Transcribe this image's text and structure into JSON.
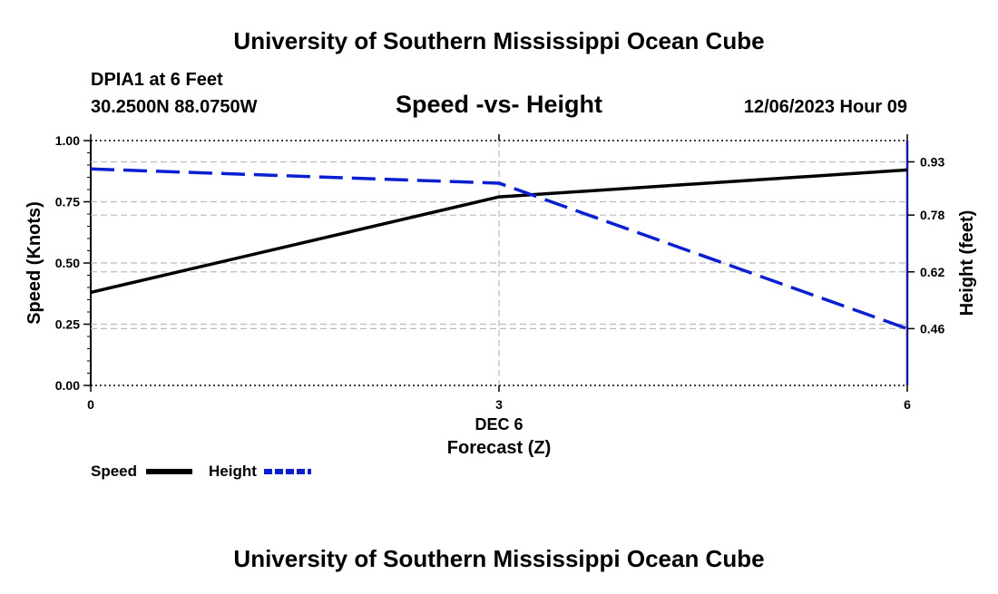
{
  "header": {
    "title": "University of Southern Mississippi Ocean Cube",
    "station": "DPIA1 at 6 Feet",
    "coords": "30.2500N  88.0750W",
    "chart_title": "Speed -vs- Height",
    "datetime": "12/06/2023 Hour 09"
  },
  "footer": {
    "title": "University of Southern Mississippi Ocean Cube"
  },
  "chart_data": {
    "type": "line",
    "title": "Speed -vs- Height",
    "xlabel": "Forecast (Z)",
    "xlabel_date": "DEC 6",
    "ylabel_left": "Speed (Knots)",
    "ylabel_right": "Height (feet)",
    "x": [
      0,
      3,
      6
    ],
    "x_ticks": [
      "0",
      "3",
      "6"
    ],
    "xlim": [
      0,
      6
    ],
    "ylim_left": [
      0,
      1
    ],
    "y_ticks_left": [
      "0.00",
      "0.25",
      "0.50",
      "0.75",
      "1.00"
    ],
    "y_tick_values_left": [
      0,
      0.25,
      0.5,
      0.75,
      1.0
    ],
    "y_ticks_right": [
      "0.46",
      "0.62",
      "0.78",
      "0.93"
    ],
    "y_tick_values_right": [
      0.46,
      0.62,
      0.78,
      0.93
    ],
    "ylim_right": [
      0.3,
      0.99
    ],
    "grid": true,
    "series": [
      {
        "name": "Speed",
        "axis": "left",
        "color": "#000000",
        "style": "solid",
        "values": [
          0.38,
          0.77,
          0.88
        ]
      },
      {
        "name": "Height",
        "axis": "right",
        "color": "#0a1fd0",
        "style": "dashed",
        "values": [
          0.91,
          0.87,
          0.46
        ]
      }
    ],
    "legend": [
      {
        "label": "Speed",
        "color": "#000000",
        "style": "solid"
      },
      {
        "label": "Height",
        "color": "#0a1fd0",
        "style": "dashed"
      }
    ],
    "legend_position": "bottom-left"
  }
}
